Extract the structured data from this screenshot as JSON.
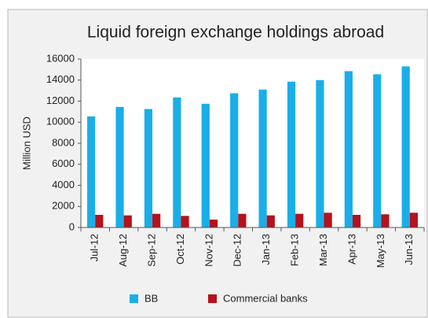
{
  "chart_data": {
    "type": "bar",
    "title": "Liquid foreign exchange holdings abroad",
    "y_label": "Million USD",
    "categories": [
      "Jul-12",
      "Aug-12",
      "Sep-12",
      "Oct-12",
      "Nov-12",
      "Dec-12",
      "Jan-13",
      "Feb-13",
      "Mar-13",
      "Apr-13",
      "May-13",
      "Jun-13"
    ],
    "series": [
      {
        "name": "BB",
        "color": "#1aaee8",
        "values": [
          10550,
          11450,
          11250,
          12350,
          11750,
          12750,
          13100,
          13850,
          14000,
          14850,
          14550,
          15300
        ]
      },
      {
        "name": "Commercial banks",
        "color": "#b5121b",
        "values": [
          1200,
          1150,
          1300,
          1100,
          750,
          1300,
          1150,
          1300,
          1400,
          1200,
          1250,
          1400
        ]
      }
    ],
    "ylim": [
      0,
      16000
    ],
    "yticks": [
      0,
      2000,
      4000,
      6000,
      8000,
      10000,
      12000,
      14000,
      16000
    ],
    "grid": false,
    "legend": "bottom"
  }
}
